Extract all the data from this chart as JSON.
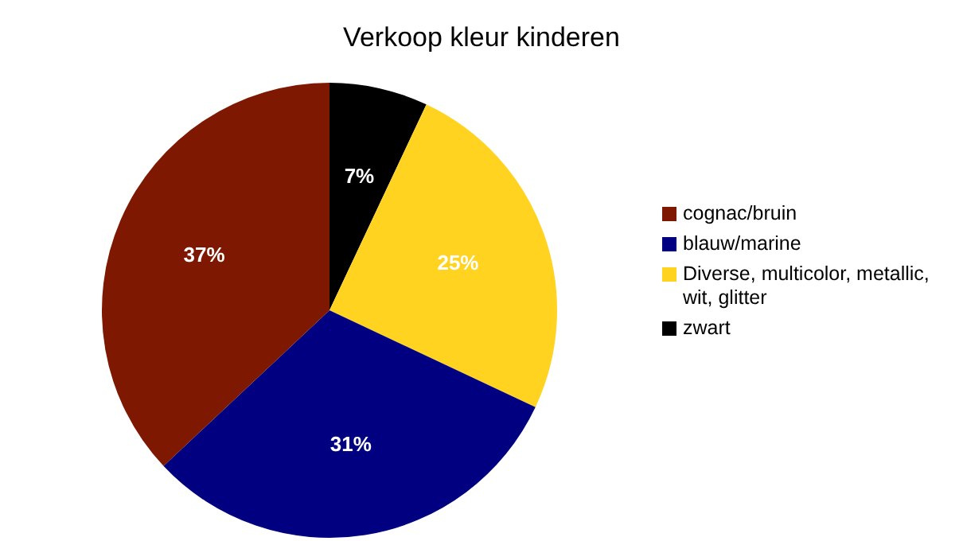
{
  "chart_data": {
    "type": "pie",
    "title": "Verkoop kleur kinderen",
    "categories": [
      "cognac/bruin",
      "blauw/marine",
      "Diverse, multicolor, metallic, wit, glitter",
      "zwart"
    ],
    "values": [
      37,
      31,
      25,
      7
    ],
    "colors": [
      "#7f1800",
      "#000080",
      "#ffd320",
      "#000000"
    ],
    "value_labels": [
      "37%",
      "31%",
      "25%",
      "7%"
    ],
    "legend": "right"
  }
}
